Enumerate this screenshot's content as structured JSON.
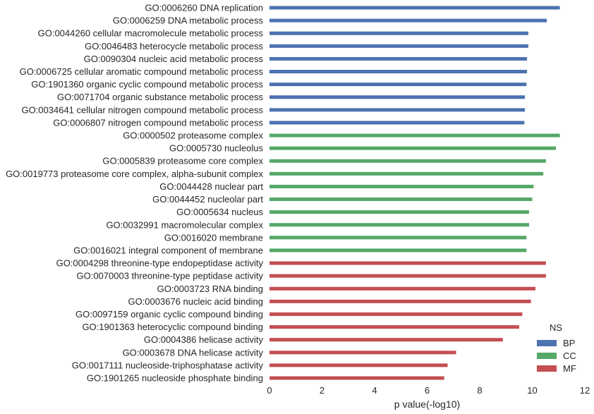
{
  "chart_data": {
    "type": "bar",
    "orientation": "horizontal",
    "xlabel": "p value(-log10)",
    "ylabel": "",
    "xlim": [
      0,
      12
    ],
    "xticks": [
      0,
      2,
      4,
      6,
      8,
      10,
      12
    ],
    "grid": false,
    "legend": {
      "title": "NS",
      "placement": "bottom-right",
      "entries": [
        {
          "name": "BP",
          "color": "#4c72b0"
        },
        {
          "name": "CC",
          "color": "#55a868"
        },
        {
          "name": "MF",
          "color": "#c44e52"
        }
      ]
    },
    "bars": [
      {
        "label": "GO:0006260 DNA replication",
        "ns": "BP",
        "value": 11.05
      },
      {
        "label": "GO:0006259 DNA metabolic process",
        "ns": "BP",
        "value": 10.55
      },
      {
        "label": "GO:0044260 cellular macromolecule metabolic process",
        "ns": "BP",
        "value": 9.85
      },
      {
        "label": "GO:0046483 heterocycle metabolic process",
        "ns": "BP",
        "value": 9.85
      },
      {
        "label": "GO:0090304 nucleic acid metabolic process",
        "ns": "BP",
        "value": 9.8
      },
      {
        "label": "GO:0006725 cellular aromatic compound metabolic process",
        "ns": "BP",
        "value": 9.8
      },
      {
        "label": "GO:1901360 organic cyclic compound metabolic process",
        "ns": "BP",
        "value": 9.78
      },
      {
        "label": "GO:0071704 organic substance metabolic process",
        "ns": "BP",
        "value": 9.72
      },
      {
        "label": "GO:0034641 cellular nitrogen compound metabolic process",
        "ns": "BP",
        "value": 9.72
      },
      {
        "label": "GO:0006807 nitrogen compound metabolic process",
        "ns": "BP",
        "value": 9.7
      },
      {
        "label": "GO:0000502 proteasome complex",
        "ns": "CC",
        "value": 11.05
      },
      {
        "label": "GO:0005730 nucleolus",
        "ns": "CC",
        "value": 10.9
      },
      {
        "label": "GO:0005839 proteasome core complex",
        "ns": "CC",
        "value": 10.52
      },
      {
        "label": "GO:0019773 proteasome core complex, alpha-subunit complex",
        "ns": "CC",
        "value": 10.42
      },
      {
        "label": "GO:0044428 nuclear part",
        "ns": "CC",
        "value": 10.05
      },
      {
        "label": "GO:0044452 nucleolar part",
        "ns": "CC",
        "value": 10.0
      },
      {
        "label": "GO:0005634 nucleus",
        "ns": "CC",
        "value": 9.88
      },
      {
        "label": "GO:0032991 macromolecular complex",
        "ns": "CC",
        "value": 9.88
      },
      {
        "label": "GO:0016020 membrane",
        "ns": "CC",
        "value": 9.78
      },
      {
        "label": "GO:0016021 integral component of membrane",
        "ns": "CC",
        "value": 9.78
      },
      {
        "label": "GO:0004298 threonine-type endopeptidase activity",
        "ns": "MF",
        "value": 10.52
      },
      {
        "label": "GO:0070003 threonine-type peptidase activity",
        "ns": "MF",
        "value": 10.52
      },
      {
        "label": "GO:0003723 RNA binding",
        "ns": "MF",
        "value": 10.12
      },
      {
        "label": "GO:0003676 nucleic acid binding",
        "ns": "MF",
        "value": 9.95
      },
      {
        "label": "GO:0097159 organic cyclic compound binding",
        "ns": "MF",
        "value": 9.62
      },
      {
        "label": "GO:1901363 heterocyclic compound binding",
        "ns": "MF",
        "value": 9.5
      },
      {
        "label": "GO:0004386 helicase activity",
        "ns": "MF",
        "value": 8.88
      },
      {
        "label": "GO:0003678 DNA helicase activity",
        "ns": "MF",
        "value": 7.1
      },
      {
        "label": "GO:0017111 nucleoside-triphosphatase activity",
        "ns": "MF",
        "value": 6.78
      },
      {
        "label": "GO:1901265 nucleoside phosphate binding",
        "ns": "MF",
        "value": 6.65
      }
    ]
  }
}
